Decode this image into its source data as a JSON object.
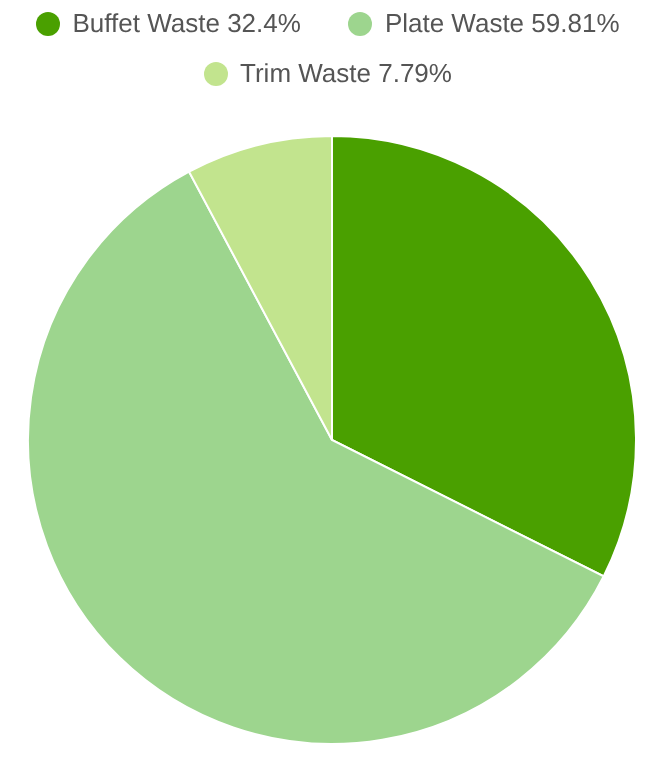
{
  "chart_data": {
    "type": "pie",
    "categories": [
      "Buffet Waste",
      "Plate Waste",
      "Trim Waste"
    ],
    "values": [
      32.4,
      59.81,
      7.79
    ],
    "value_labels": [
      "32.4%",
      "59.81%",
      "7.79%"
    ],
    "colors": [
      "#4aa000",
      "#9dd58e",
      "#c2e48e"
    ],
    "legend": "top"
  }
}
